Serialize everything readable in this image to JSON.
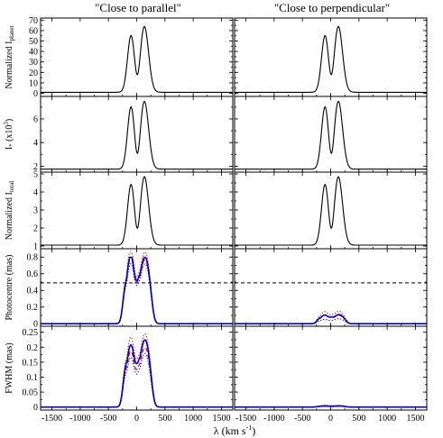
{
  "column_titles": [
    "\"Close to parallel\"",
    "\"Close to perpendicular\""
  ],
  "x_axis": {
    "label": "λ (km s",
    "label_sup": "-1",
    "label_end": ")",
    "range": [
      -1700,
      1700
    ],
    "ticks": [
      -1500,
      -1000,
      -500,
      0,
      500,
      1000,
      1500
    ],
    "tick_labels": [
      "-1500",
      "-1000",
      "-500",
      "0",
      "500",
      "1000",
      "1500"
    ]
  },
  "rows": [
    {
      "id": "planet",
      "ylabel": "Normalized I",
      "ylabel_sub": "planet",
      "ylabel_sup": "",
      "ylabel_end": "",
      "range": [
        -3,
        72
      ],
      "ticks": [
        0,
        10,
        20,
        30,
        40,
        50,
        60,
        70
      ],
      "tick_labels": [
        "0",
        "10",
        "20",
        "30",
        "40",
        "50",
        "60",
        "70"
      ]
    },
    {
      "id": "star",
      "ylabel": "I",
      "ylabel_sub": "*",
      "ylabel_sup": "3",
      "ylabel_pre": " (x10",
      "ylabel_end": ")",
      "range": [
        1.5,
        7.9
      ],
      "ticks": [
        2,
        4,
        6
      ],
      "tick_labels": [
        "2",
        "4",
        "6"
      ]
    },
    {
      "id": "total",
      "ylabel": "Normalized I",
      "ylabel_sub": "total",
      "range": [
        0.85,
        5.1
      ],
      "ticks": [
        1,
        2,
        3,
        4,
        5
      ],
      "tick_labels": [
        "1",
        "2",
        "3",
        "4",
        "5"
      ]
    },
    {
      "id": "photocentre",
      "ylabel": "Photocentre (mas)",
      "range": [
        -0.03,
        0.9
      ],
      "ticks": [
        0,
        0.2,
        0.4,
        0.6,
        0.8
      ],
      "tick_labels": [
        "0",
        "0.2",
        "0.4",
        "0.6",
        "0.8"
      ]
    },
    {
      "id": "fwhm",
      "ylabel": "FWHM (mas)",
      "range": [
        -0.01,
        0.27
      ],
      "ticks": [
        0,
        0.05,
        0.1,
        0.15,
        0.2,
        0.25
      ],
      "tick_labels": [
        "0",
        "0.05",
        "0.1",
        "0.15",
        "0.2",
        "0.25"
      ]
    }
  ],
  "chart_data": {
    "type": "line",
    "description_of_profile": "double-peaked emission profile with peaks near -100 and +130 km/s",
    "panels": [
      {
        "row": "planet",
        "column": 0,
        "series": [
          {
            "style": "solid",
            "color": "#000000",
            "baseline": 1,
            "peak_left": 55,
            "peak_right": 64,
            "dip": 18
          }
        ]
      },
      {
        "row": "planet",
        "column": 1,
        "series": [
          {
            "style": "solid",
            "color": "#000000",
            "baseline": 1,
            "peak_left": 55,
            "peak_right": 64,
            "dip": 18
          }
        ]
      },
      {
        "row": "star",
        "column": 0,
        "series": [
          {
            "style": "solid",
            "color": "#000000",
            "baseline": 1.75,
            "peak_left": 7.0,
            "peak_right": 7.5,
            "dip": 3.1
          }
        ]
      },
      {
        "row": "star",
        "column": 1,
        "series": [
          {
            "style": "solid",
            "color": "#000000",
            "baseline": 1.75,
            "peak_left": 7.0,
            "peak_right": 7.5,
            "dip": 3.1
          }
        ]
      },
      {
        "row": "total",
        "column": 0,
        "series": [
          {
            "style": "solid",
            "color": "#000000",
            "baseline": 1.05,
            "peak_left": 4.4,
            "peak_right": 4.85,
            "dip": 2.0
          }
        ]
      },
      {
        "row": "total",
        "column": 1,
        "series": [
          {
            "style": "solid",
            "color": "#000000",
            "baseline": 1.05,
            "peak_left": 4.4,
            "peak_right": 4.85,
            "dip": 2.0
          }
        ]
      },
      {
        "row": "photocentre",
        "column": 0,
        "hline": {
          "y": 0.49,
          "style": "dashed",
          "color": "#000000"
        },
        "series": [
          {
            "style": "solid",
            "color": "#0000cc",
            "baseline": 0,
            "peak_left": 0.79,
            "peak_right": 0.8,
            "dip": 0.52
          },
          {
            "style": "dashed",
            "color": "#cc0000",
            "baseline": 0,
            "peak_left": 0.76,
            "peak_right": 0.77,
            "dip": 0.5
          },
          {
            "style": "dotted",
            "color": "#cc0000",
            "baseline": 0,
            "peak_left": 0.86,
            "peak_right": 0.86,
            "dip": 0.56
          },
          {
            "style": "dotted",
            "color": "#0000cc",
            "baseline": 0,
            "peak_left": 0.7,
            "peak_right": 0.72,
            "dip": 0.46
          }
        ]
      },
      {
        "row": "photocentre",
        "column": 1,
        "hline": {
          "y": 0.49,
          "style": "dashed",
          "color": "#000000"
        },
        "series": [
          {
            "style": "solid",
            "color": "#0000cc",
            "baseline": 0,
            "peak_left": 0.1,
            "peak_right": 0.11,
            "dip": 0.08
          },
          {
            "style": "dashed",
            "color": "#cc0000",
            "baseline": 0,
            "peak_left": 0.1,
            "peak_right": 0.1,
            "dip": 0.08
          },
          {
            "style": "dotted",
            "color": "#cc0000",
            "baseline": 0,
            "peak_left": 0.14,
            "peak_right": 0.15,
            "dip": 0.11
          },
          {
            "style": "dotted",
            "color": "#0000cc",
            "baseline": 0,
            "peak_left": 0.05,
            "peak_right": 0.06,
            "dip": 0.04
          }
        ]
      },
      {
        "row": "fwhm",
        "column": 0,
        "series": [
          {
            "style": "solid",
            "color": "#0000cc",
            "baseline": 0,
            "peak_left": 0.2,
            "peak_right": 0.225,
            "dip": 0.145
          },
          {
            "style": "dashed",
            "color": "#cc0000",
            "baseline": 0,
            "peak_left": 0.18,
            "peak_right": 0.2,
            "dip": 0.125
          },
          {
            "style": "dotted",
            "color": "#cc0000",
            "baseline": 0,
            "peak_left": 0.225,
            "peak_right": 0.245,
            "dip": 0.16
          },
          {
            "style": "dotted",
            "color": "#0000cc",
            "baseline": 0,
            "peak_left": 0.16,
            "peak_right": 0.18,
            "dip": 0.11
          }
        ]
      },
      {
        "row": "fwhm",
        "column": 1,
        "series": [
          {
            "style": "solid",
            "color": "#0000cc",
            "baseline": 0,
            "peak_left": 0.004,
            "peak_right": 0.004,
            "dip": 0.003
          },
          {
            "style": "dashed",
            "color": "#cc0000",
            "baseline": 0,
            "peak_left": 0.003,
            "peak_right": 0.003,
            "dip": 0.002
          },
          {
            "style": "dotted",
            "color": "#cc0000",
            "baseline": 0,
            "peak_left": 0.006,
            "peak_right": 0.006,
            "dip": 0.005
          },
          {
            "style": "dotted",
            "color": "#0000cc",
            "baseline": 0,
            "peak_left": 0.002,
            "peak_right": 0.002,
            "dip": 0.001
          }
        ]
      }
    ]
  }
}
